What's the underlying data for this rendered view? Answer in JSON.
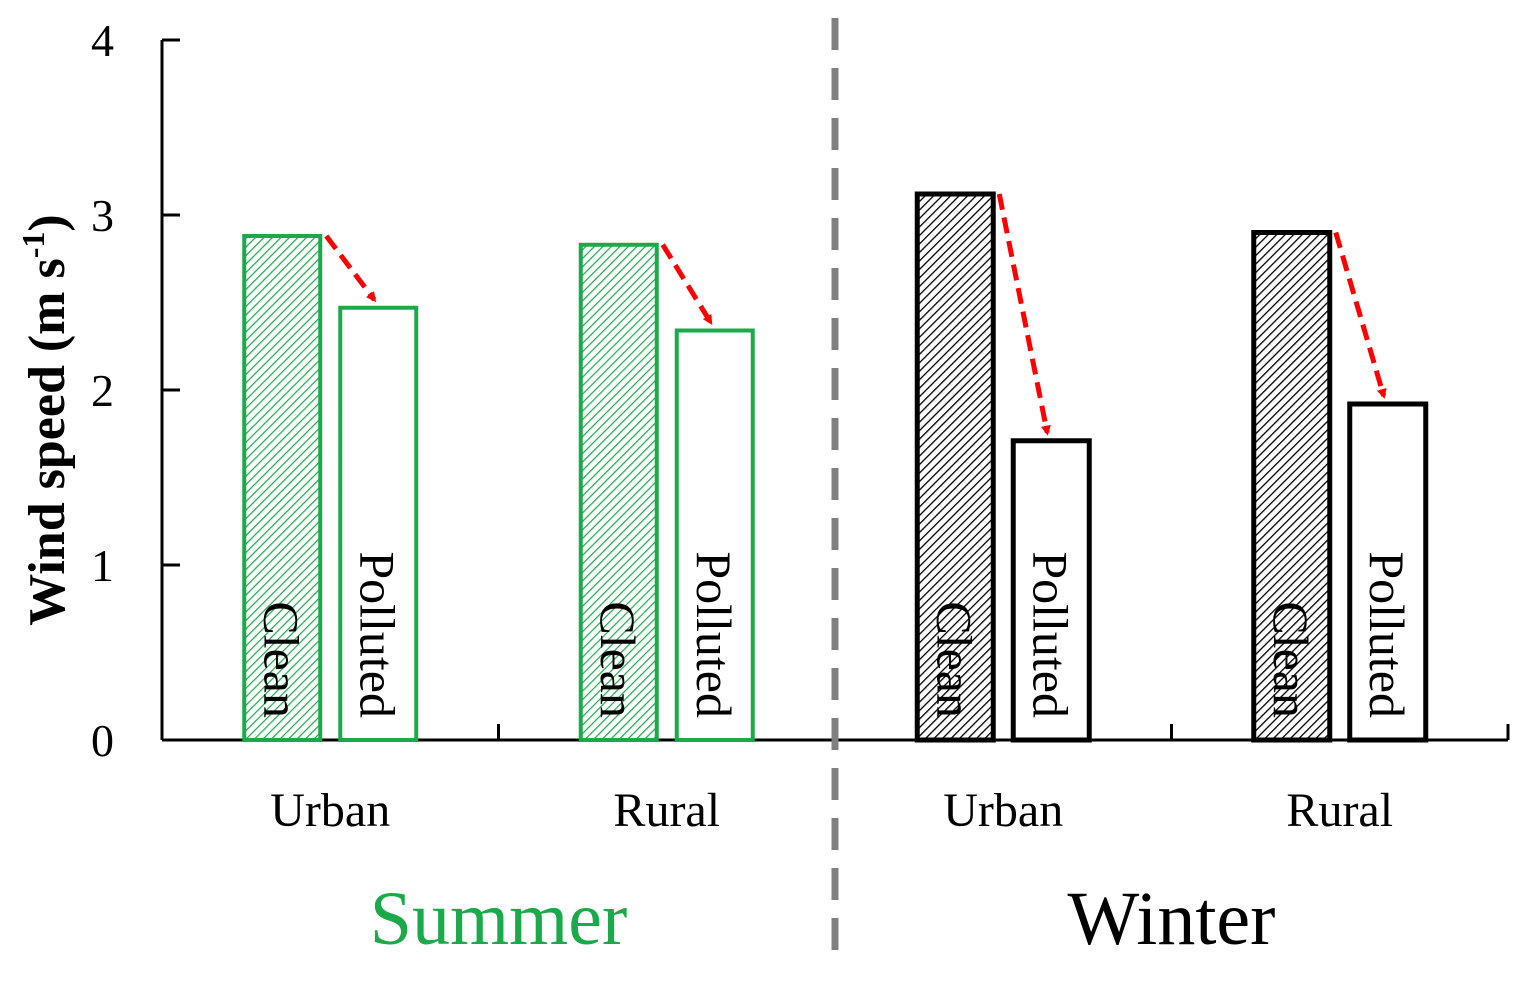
{
  "chart_data": {
    "type": "bar",
    "ylabel": "Wind speed (m s",
    "ylabel_sup": "-1",
    "ylabel_close": ")",
    "ylim": [
      0,
      4
    ],
    "yticks": [
      "0",
      "1",
      "2",
      "3",
      "4"
    ],
    "categories": [
      "Urban",
      "Rural",
      "Urban",
      "Rural"
    ],
    "groups": [
      {
        "name": "Summer",
        "color": "#1aaa4a",
        "categories": [
          "Urban",
          "Rural"
        ]
      },
      {
        "name": "Winter",
        "color": "#000000",
        "categories": [
          "Urban",
          "Rural"
        ]
      }
    ],
    "series": [
      {
        "name": "Clean",
        "values": [
          2.88,
          2.83,
          3.12,
          2.9
        ],
        "style": "hatched"
      },
      {
        "name": "Polluted",
        "values": [
          2.47,
          2.34,
          1.71,
          1.92
        ],
        "style": "open"
      }
    ],
    "arrow_color": "#ff0000",
    "divider_color": "#808080"
  }
}
